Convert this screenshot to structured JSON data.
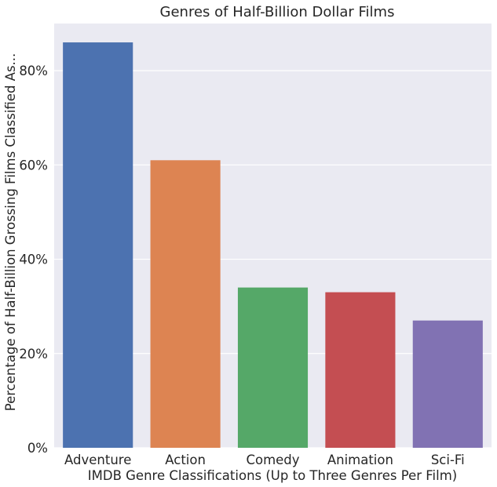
{
  "chart_data": {
    "type": "bar",
    "title": "Genres of Half-Billion Dollar Films",
    "xlabel": "IMDB Genre Classifications (Up to Three Genres Per Film)",
    "ylabel": "Percentage of Half-Billion Grossing Films Classified As...",
    "categories": [
      "Adventure",
      "Action",
      "Comedy",
      "Animation",
      "Sci-Fi"
    ],
    "values": [
      86,
      61,
      34,
      33,
      27
    ],
    "colors": [
      "#4c72b0",
      "#dd8452",
      "#55a868",
      "#c44e52",
      "#8172b3"
    ],
    "ylim": [
      0,
      90
    ],
    "yticks": [
      0,
      20,
      40,
      60,
      80
    ],
    "ytick_labels": [
      "0%",
      "20%",
      "40%",
      "60%",
      "80%"
    ],
    "grid": true,
    "background": "#eaeaf2",
    "grid_color": "#ffffff"
  }
}
